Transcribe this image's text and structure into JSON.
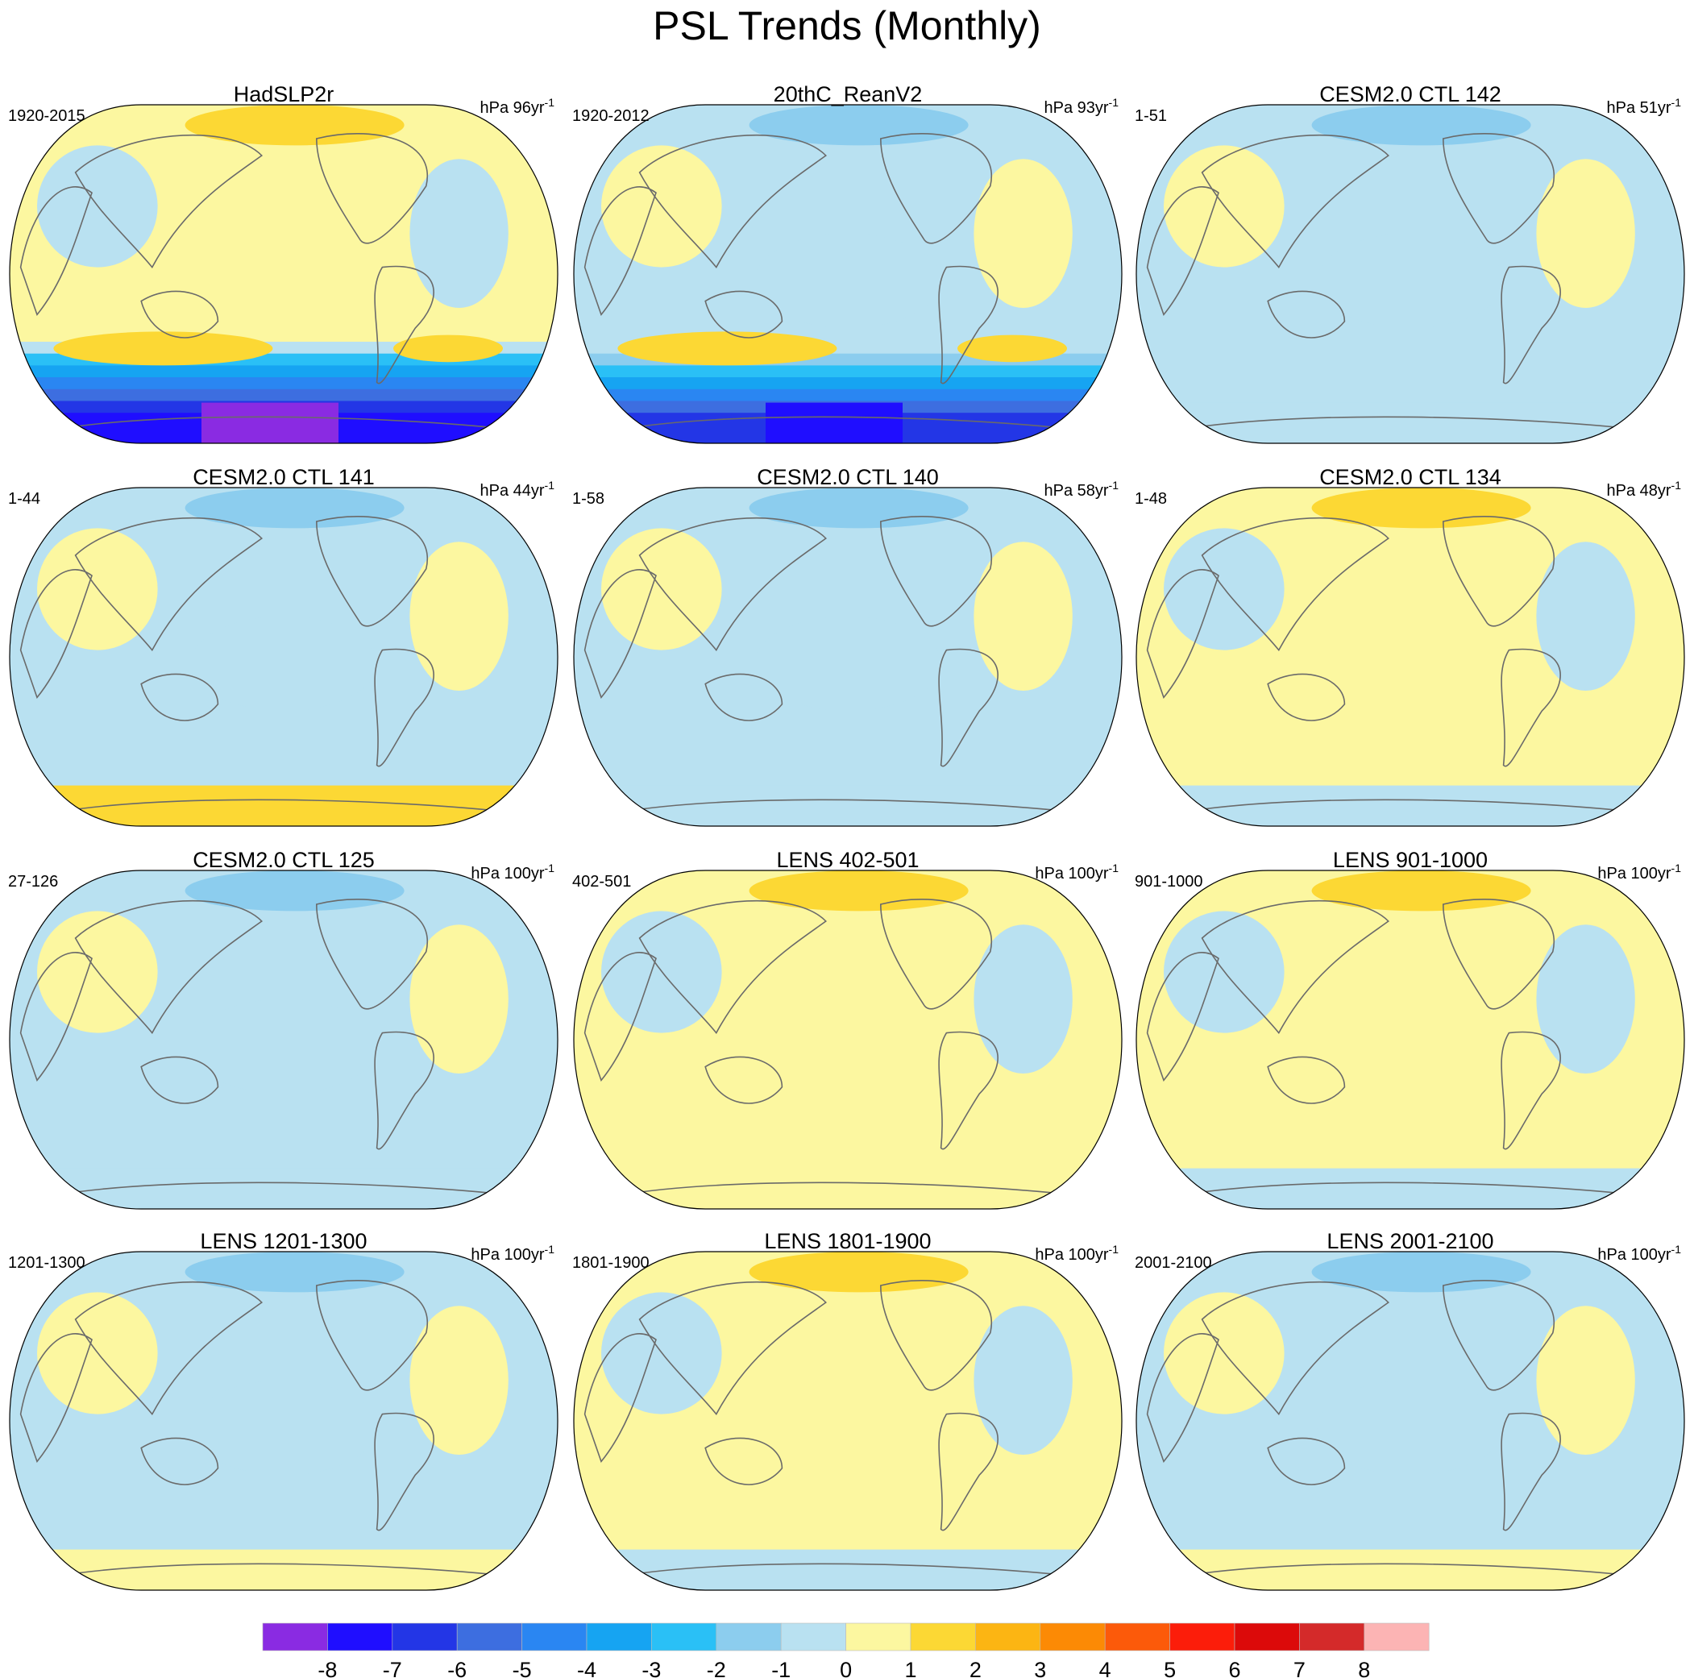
{
  "title": "PSL Trends (Monthly)",
  "chart_data": {
    "type": "contour-map-panels",
    "projection": "Robinson-like global map, 180° centred",
    "units": "hPa",
    "colorbar": {
      "ticks": [
        -8,
        -7,
        -6,
        -5,
        -4,
        -3,
        -2,
        -1,
        0,
        1,
        2,
        3,
        4,
        5,
        6,
        7,
        8
      ],
      "tick_labels": [
        "-8",
        "-7",
        "-6",
        "-5",
        "-4",
        "-3",
        "-2",
        "-1",
        "0",
        "1",
        "2",
        "3",
        "4",
        "5",
        "6",
        "7",
        "8"
      ],
      "colors": [
        "#8a2be2",
        "#1f0eff",
        "#2336e6",
        "#3d6ee0",
        "#2a86f2",
        "#16a4f2",
        "#2ac0f6",
        "#8ccdee",
        "#b9e1f1",
        "#fcf7a0",
        "#fcd834",
        "#fcb513",
        "#fc8a05",
        "#fc5a0a",
        "#fc1d0a",
        "#dc0a0a",
        "#d42a2a",
        "#fcb4b4"
      ]
    },
    "panels": [
      {
        "title": "HadSLP2r",
        "period": "1920-2015",
        "units": "hPa 96yr",
        "exponent": "-1",
        "mean_trend": 0.3,
        "antarctic_trend": -8
      },
      {
        "title": "20thC_ReanV2",
        "period": "1920-2012",
        "units": "hPa 93yr",
        "exponent": "-1",
        "mean_trend": -0.4,
        "antarctic_trend": -7
      },
      {
        "title": "CESM2.0 CTL 142",
        "period": "1-51",
        "units": "hPa 51yr",
        "exponent": "-1",
        "mean_trend": -0.2,
        "antarctic_trend": -1
      },
      {
        "title": "CESM2.0 CTL 141",
        "period": "1-44",
        "units": "hPa 44yr",
        "exponent": "-1",
        "mean_trend": -0.1,
        "antarctic_trend": 1
      },
      {
        "title": "CESM2.0 CTL 140",
        "period": "1-58",
        "units": "hPa 58yr",
        "exponent": "-1",
        "mean_trend": -0.2,
        "antarctic_trend": -1
      },
      {
        "title": "CESM2.0 CTL 134",
        "period": "1-48",
        "units": "hPa 48yr",
        "exponent": "-1",
        "mean_trend": 0.1,
        "antarctic_trend": -1
      },
      {
        "title": "CESM2.0 CTL 125",
        "period": "27-126",
        "units": "hPa 100yr",
        "exponent": "-1",
        "mean_trend": -0.1,
        "antarctic_trend": -1
      },
      {
        "title": "LENS 402-501",
        "period": "402-501",
        "units": "hPa 100yr",
        "exponent": "-1",
        "mean_trend": 0.1,
        "antarctic_trend": 0.5
      },
      {
        "title": "LENS 901-1000",
        "period": "901-1000",
        "units": "hPa 100yr",
        "exponent": "-1",
        "mean_trend": 0.1,
        "antarctic_trend": -1
      },
      {
        "title": "LENS 1201-1300",
        "period": "1201-1300",
        "units": "hPa 100yr",
        "exponent": "-1",
        "mean_trend": -0.1,
        "antarctic_trend": 0.5
      },
      {
        "title": "LENS 1801-1900",
        "period": "1801-1900",
        "units": "hPa 100yr",
        "exponent": "-1",
        "mean_trend": 0.1,
        "antarctic_trend": -0.5
      },
      {
        "title": "LENS 2001-2100",
        "period": "2001-2100",
        "units": "hPa 100yr",
        "exponent": "-1",
        "mean_trend": -0.1,
        "antarctic_trend": 0.5
      }
    ]
  }
}
